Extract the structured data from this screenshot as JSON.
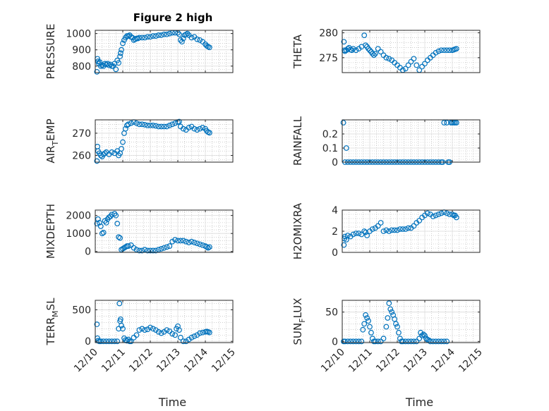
{
  "figure_title": "Figure 2 high",
  "colors": {
    "marker": "#0072BD",
    "axis": "#262626",
    "grid": "#b0b0b0"
  },
  "chart_data": [
    {
      "type": "scatter",
      "id": "pressure",
      "ylabel": "PRESSURE",
      "ylim": [
        760,
        1020
      ],
      "yticks": [
        800,
        900,
        1000
      ],
      "xlim": [
        0,
        5
      ],
      "xticks": [
        "12/10",
        "12/11",
        "12/12",
        "12/13",
        "12/14",
        "12/15"
      ],
      "xlabel": "",
      "show_xticklabels": false,
      "x": [
        0.06,
        0.08,
        0.1,
        0.13,
        0.16,
        0.2,
        0.25,
        0.3,
        0.35,
        0.4,
        0.45,
        0.5,
        0.55,
        0.6,
        0.65,
        0.7,
        0.75,
        0.8,
        0.85,
        0.9,
        0.92,
        0.95,
        1.0,
        1.05,
        1.1,
        1.15,
        1.2,
        1.25,
        1.3,
        1.35,
        1.4,
        1.45,
        1.5,
        1.55,
        1.6,
        1.7,
        1.8,
        1.9,
        2.0,
        2.1,
        2.2,
        2.3,
        2.4,
        2.5,
        2.6,
        2.7,
        2.8,
        2.9,
        3.0,
        3.05,
        3.1,
        3.15,
        3.2,
        3.25,
        3.3,
        3.35,
        3.4,
        3.5,
        3.6,
        3.7,
        3.8,
        3.9,
        4.0,
        4.05,
        4.1,
        4.15
      ],
      "y": [
        765,
        845,
        830,
        815,
        825,
        800,
        805,
        800,
        815,
        810,
        815,
        805,
        810,
        800,
        800,
        815,
        780,
        835,
        820,
        860,
        880,
        900,
        940,
        960,
        975,
        985,
        985,
        990,
        980,
        975,
        960,
        965,
        970,
        970,
        975,
        975,
        975,
        980,
        980,
        985,
        985,
        990,
        990,
        995,
        995,
        1000,
        1005,
        1005,
        1005,
        995,
        960,
        950,
        970,
        990,
        995,
        1000,
        990,
        975,
        980,
        965,
        960,
        950,
        935,
        925,
        920,
        915
      ]
    },
    {
      "type": "scatter",
      "id": "theta",
      "ylabel": "THETA",
      "ylim": [
        272,
        280.5
      ],
      "yticks": [
        275,
        280
      ],
      "xlim": [
        0,
        5
      ],
      "xticks": [
        "12/10",
        "12/11",
        "12/12",
        "12/13",
        "12/14",
        "12/15"
      ],
      "xlabel": "",
      "show_xticklabels": false,
      "x": [
        0.06,
        0.08,
        0.1,
        0.15,
        0.2,
        0.25,
        0.3,
        0.35,
        0.4,
        0.5,
        0.6,
        0.7,
        0.8,
        0.85,
        0.9,
        0.95,
        1.0,
        1.05,
        1.1,
        1.15,
        1.2,
        1.3,
        1.4,
        1.5,
        1.6,
        1.7,
        1.8,
        1.9,
        2.0,
        2.1,
        2.2,
        2.3,
        2.4,
        2.5,
        2.6,
        2.7,
        2.8,
        2.9,
        3.0,
        3.1,
        3.2,
        3.3,
        3.4,
        3.5,
        3.6,
        3.7,
        3.8,
        3.9,
        4.0,
        4.05,
        4.1,
        4.15
      ],
      "y": [
        278.2,
        276.5,
        276.3,
        276.5,
        276.8,
        277,
        276.6,
        276.5,
        276.8,
        276.5,
        276.8,
        277.2,
        279.5,
        277.5,
        277.2,
        276.8,
        276.5,
        276.2,
        275.8,
        275.5,
        275.8,
        276.8,
        276.2,
        275.5,
        275,
        274.8,
        274.5,
        274,
        273.5,
        273,
        272.5,
        272.8,
        273.5,
        274.2,
        274.8,
        273.5,
        272.5,
        273.2,
        273.8,
        274.5,
        275,
        275.5,
        276,
        276.3,
        276.5,
        276.5,
        276.5,
        276.5,
        276.5,
        276.6,
        276.7,
        276.8
      ]
    },
    {
      "type": "scatter",
      "id": "air_temp",
      "ylabel": "AIR_TEMP",
      "ylim": [
        257,
        276
      ],
      "yticks": [
        260,
        270
      ],
      "xlim": [
        0,
        5
      ],
      "xticks": [
        "12/10",
        "12/11",
        "12/12",
        "12/13",
        "12/14",
        "12/15"
      ],
      "xlabel": "",
      "show_xticklabels": false,
      "x": [
        0.06,
        0.08,
        0.1,
        0.15,
        0.2,
        0.25,
        0.3,
        0.35,
        0.4,
        0.5,
        0.6,
        0.7,
        0.8,
        0.85,
        0.9,
        0.95,
        1.0,
        1.05,
        1.1,
        1.15,
        1.2,
        1.3,
        1.4,
        1.5,
        1.6,
        1.7,
        1.8,
        1.9,
        2.0,
        2.1,
        2.2,
        2.3,
        2.4,
        2.5,
        2.6,
        2.7,
        2.8,
        2.9,
        3.0,
        3.05,
        3.1,
        3.2,
        3.3,
        3.4,
        3.5,
        3.6,
        3.7,
        3.8,
        3.9,
        4.0,
        4.05,
        4.1,
        4.15
      ],
      "y": [
        257.5,
        264,
        262,
        261,
        260,
        259.5,
        260.5,
        261,
        261.5,
        260.5,
        261.5,
        261,
        262,
        260,
        261,
        263,
        266,
        270,
        272,
        273.5,
        274,
        274.5,
        275,
        274.5,
        274,
        274,
        273.8,
        273.5,
        273.5,
        273.5,
        273.3,
        273,
        273,
        273,
        273,
        273.5,
        274,
        274.5,
        275,
        275.2,
        273,
        272,
        271.5,
        272.5,
        273,
        272,
        271.5,
        272,
        272.5,
        272,
        271,
        270.5,
        270.2
      ]
    },
    {
      "type": "scatter",
      "id": "rainfall",
      "ylabel": "RAINFALL",
      "ylim": [
        0,
        0.3
      ],
      "yticks": [
        0,
        0.1,
        0.2
      ],
      "xlim": [
        0,
        5
      ],
      "xticks": [
        "12/10",
        "12/11",
        "12/12",
        "12/13",
        "12/14",
        "12/15"
      ],
      "xlabel": "",
      "show_xticklabels": false,
      "x": [
        0.04,
        0.1,
        0.15,
        0.2,
        0.3,
        0.4,
        0.5,
        0.6,
        0.7,
        0.8,
        0.9,
        1.0,
        1.1,
        1.2,
        1.3,
        1.4,
        1.5,
        1.6,
        1.7,
        1.8,
        1.9,
        2.0,
        2.1,
        2.2,
        2.3,
        2.4,
        2.5,
        2.6,
        2.7,
        2.8,
        2.9,
        3.0,
        3.1,
        3.2,
        3.3,
        3.4,
        3.5,
        3.6,
        3.65,
        3.7,
        3.8,
        3.85,
        3.9,
        3.95,
        4.0,
        4.05,
        4.1,
        4.15
      ],
      "y": [
        0.28,
        0,
        0.1,
        0,
        0,
        0,
        0,
        0,
        0,
        0,
        0,
        0,
        0,
        0,
        0,
        0,
        0,
        0,
        0,
        0,
        0,
        0,
        0,
        0,
        0,
        0,
        0,
        0,
        0,
        0,
        0,
        0,
        0,
        0,
        0,
        0,
        0,
        0,
        0,
        0.28,
        0.28,
        0,
        0,
        0.28,
        0.28,
        0.28,
        0.28,
        0.28
      ]
    },
    {
      "type": "scatter",
      "id": "mixdepth",
      "ylabel": "MIXDEPTH",
      "ylim": [
        -50,
        2300
      ],
      "yticks": [
        0,
        1000,
        2000
      ],
      "xlim": [
        0,
        5
      ],
      "xticks": [
        "12/10",
        "12/11",
        "12/12",
        "12/13",
        "12/14",
        "12/15"
      ],
      "xlabel": "",
      "show_xticklabels": false,
      "x": [
        0.06,
        0.1,
        0.15,
        0.2,
        0.25,
        0.3,
        0.35,
        0.4,
        0.45,
        0.5,
        0.55,
        0.6,
        0.7,
        0.75,
        0.8,
        0.85,
        0.9,
        0.95,
        1.0,
        1.05,
        1.1,
        1.15,
        1.2,
        1.3,
        1.4,
        1.5,
        1.6,
        1.7,
        1.8,
        1.9,
        2.0,
        2.1,
        2.2,
        2.3,
        2.4,
        2.5,
        2.6,
        2.7,
        2.8,
        2.9,
        3.0,
        3.1,
        3.2,
        3.3,
        3.4,
        3.5,
        3.6,
        3.7,
        3.8,
        3.9,
        4.0,
        4.05,
        4.1,
        4.15
      ],
      "y": [
        1550,
        1800,
        1600,
        1400,
        1000,
        1050,
        1700,
        1600,
        1800,
        1900,
        1950,
        2050,
        2100,
        2000,
        1550,
        800,
        750,
        100,
        150,
        200,
        250,
        300,
        300,
        350,
        200,
        100,
        50,
        50,
        100,
        50,
        50,
        50,
        50,
        100,
        150,
        200,
        250,
        300,
        550,
        650,
        600,
        600,
        600,
        550,
        500,
        550,
        500,
        450,
        400,
        350,
        300,
        250,
        200,
        250
      ]
    },
    {
      "type": "scatter",
      "id": "h2omixra",
      "ylabel": "H2OMIXRA",
      "ylim": [
        0,
        4
      ],
      "yticks": [
        0,
        2,
        4
      ],
      "xlim": [
        0,
        5
      ],
      "xticks": [
        "12/10",
        "12/11",
        "12/12",
        "12/13",
        "12/14",
        "12/15"
      ],
      "xlabel": "",
      "show_xticklabels": false,
      "x": [
        0.06,
        0.08,
        0.1,
        0.15,
        0.2,
        0.3,
        0.4,
        0.5,
        0.6,
        0.7,
        0.8,
        0.85,
        0.9,
        1.0,
        1.1,
        1.2,
        1.3,
        1.4,
        1.5,
        1.6,
        1.7,
        1.8,
        1.9,
        2.0,
        2.1,
        2.2,
        2.3,
        2.4,
        2.5,
        2.6,
        2.7,
        2.8,
        2.9,
        3.0,
        3.1,
        3.2,
        3.3,
        3.4,
        3.5,
        3.6,
        3.7,
        3.8,
        3.9,
        4.0,
        4.05,
        4.1,
        4.15
      ],
      "y": [
        0.7,
        1.3,
        1.5,
        1.2,
        1.6,
        1.5,
        1.7,
        1.8,
        1.8,
        1.7,
        2.0,
        1.9,
        1.6,
        2.0,
        2.2,
        2.3,
        2.5,
        2.8,
        2.0,
        2.1,
        2.0,
        2.1,
        2.1,
        2.1,
        2.2,
        2.2,
        2.2,
        2.3,
        2.3,
        2.5,
        2.8,
        3.0,
        3.3,
        3.5,
        3.7,
        3.6,
        3.4,
        3.5,
        3.6,
        3.7,
        3.8,
        3.7,
        3.6,
        3.6,
        3.5,
        3.5,
        3.3
      ]
    },
    {
      "type": "scatter",
      "id": "terr_msl",
      "ylabel": "TERR_MSL",
      "ylim": [
        -20,
        650
      ],
      "yticks": [
        0,
        500
      ],
      "xlim": [
        0,
        5
      ],
      "xticks": [
        "12/10",
        "12/11",
        "12/12",
        "12/13",
        "12/14",
        "12/15"
      ],
      "xlabel": "Time",
      "show_xticklabels": true,
      "x": [
        0.06,
        0.08,
        0.1,
        0.15,
        0.2,
        0.3,
        0.4,
        0.5,
        0.6,
        0.7,
        0.8,
        0.85,
        0.88,
        0.9,
        0.92,
        0.95,
        1.0,
        1.05,
        1.1,
        1.15,
        1.2,
        1.25,
        1.3,
        1.4,
        1.5,
        1.6,
        1.7,
        1.8,
        1.9,
        2.0,
        2.1,
        2.2,
        2.3,
        2.4,
        2.5,
        2.6,
        2.7,
        2.8,
        2.9,
        2.95,
        3.0,
        3.05,
        3.1,
        3.2,
        3.3,
        3.4,
        3.5,
        3.6,
        3.7,
        3.8,
        3.9,
        4.0,
        4.05,
        4.1,
        4.15
      ],
      "y": [
        270,
        50,
        10,
        0,
        0,
        0,
        0,
        0,
        0,
        0,
        0,
        200,
        600,
        320,
        350,
        250,
        200,
        50,
        20,
        10,
        30,
        0,
        0,
        60,
        100,
        180,
        200,
        180,
        190,
        220,
        200,
        180,
        150,
        130,
        150,
        180,
        160,
        120,
        100,
        200,
        240,
        180,
        60,
        0,
        0,
        30,
        60,
        80,
        100,
        130,
        140,
        150,
        155,
        150,
        140
      ]
    },
    {
      "type": "scatter",
      "id": "sun_flux",
      "ylabel": "SUN_FLUX",
      "ylim": [
        -2,
        70
      ],
      "yticks": [
        0,
        50
      ],
      "xlim": [
        0,
        5
      ],
      "xticks": [
        "12/10",
        "12/11",
        "12/12",
        "12/13",
        "12/14",
        "12/15"
      ],
      "xlabel": "Time",
      "show_xticklabels": true,
      "x": [
        0.05,
        0.1,
        0.2,
        0.3,
        0.4,
        0.5,
        0.6,
        0.7,
        0.75,
        0.8,
        0.85,
        0.9,
        0.95,
        1.0,
        1.05,
        1.1,
        1.15,
        1.2,
        1.3,
        1.4,
        1.5,
        1.6,
        1.65,
        1.7,
        1.75,
        1.8,
        1.85,
        1.9,
        1.95,
        2.0,
        2.05,
        2.1,
        2.15,
        2.2,
        2.3,
        2.4,
        2.5,
        2.6,
        2.7,
        2.8,
        2.85,
        2.9,
        2.95,
        3.0,
        3.05,
        3.1,
        3.15,
        3.2,
        3.3,
        3.4,
        3.5,
        3.6,
        3.7,
        3.8
      ],
      "y": [
        0,
        0,
        0,
        0,
        0,
        0,
        0,
        0,
        20,
        30,
        45,
        40,
        35,
        25,
        15,
        5,
        0,
        0,
        0,
        0,
        5,
        25,
        40,
        65,
        55,
        50,
        45,
        38,
        30,
        25,
        15,
        5,
        0,
        0,
        0,
        0,
        0,
        0,
        0,
        5,
        15,
        10,
        12,
        10,
        5,
        3,
        2,
        0,
        0,
        0,
        0,
        0,
        0,
        0
      ]
    }
  ]
}
